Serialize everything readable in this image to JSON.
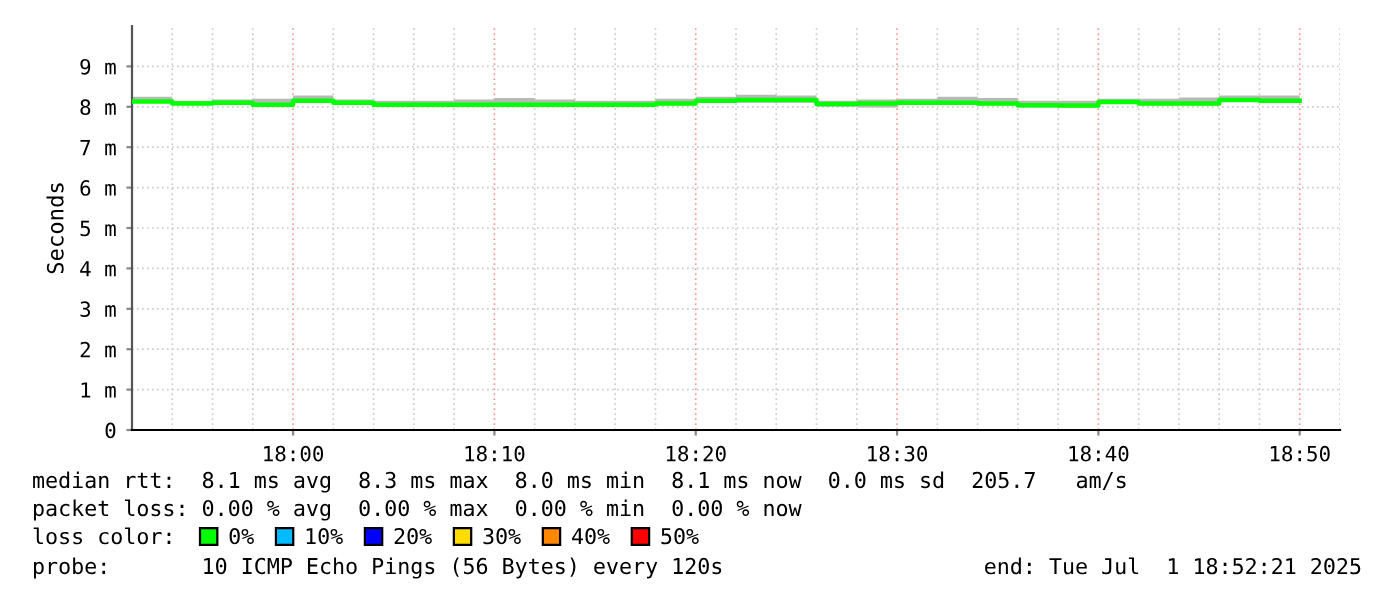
{
  "chart_data": {
    "type": "step",
    "ylabel": "Seconds",
    "x": [
      "2025-07-01T17:52",
      "2025-07-01T17:54",
      "2025-07-01T17:56",
      "2025-07-01T17:58",
      "2025-07-01T18:00",
      "2025-07-01T18:02",
      "2025-07-01T18:04",
      "2025-07-01T18:06",
      "2025-07-01T18:08",
      "2025-07-01T18:10",
      "2025-07-01T18:12",
      "2025-07-01T18:14",
      "2025-07-01T18:16",
      "2025-07-01T18:18",
      "2025-07-01T18:20",
      "2025-07-01T18:22",
      "2025-07-01T18:24",
      "2025-07-01T18:26",
      "2025-07-01T18:28",
      "2025-07-01T18:30",
      "2025-07-01T18:32",
      "2025-07-01T18:34",
      "2025-07-01T18:36",
      "2025-07-01T18:38",
      "2025-07-01T18:40",
      "2025-07-01T18:42",
      "2025-07-01T18:44",
      "2025-07-01T18:46",
      "2025-07-01T18:48",
      "2025-07-01T18:50"
    ],
    "series": [
      {
        "name": "0%",
        "color": "#00ff00",
        "values": [
          8.13,
          8.08,
          8.1,
          8.05,
          8.15,
          8.1,
          8.05,
          8.05,
          8.05,
          8.05,
          8.05,
          8.05,
          8.05,
          8.08,
          8.15,
          8.17,
          8.17,
          8.07,
          8.08,
          8.1,
          8.1,
          8.08,
          8.04,
          8.03,
          8.12,
          8.08,
          8.08,
          8.17,
          8.15,
          8.15
        ],
        "lower": [
          8.1,
          8.05,
          8.05,
          8.0,
          8.1,
          8.05,
          8.0,
          8.0,
          8.0,
          8.0,
          8.0,
          8.0,
          8.0,
          8.03,
          8.1,
          8.1,
          8.1,
          8.0,
          7.98,
          8.05,
          8.05,
          8.03,
          7.98,
          7.98,
          8.07,
          8.03,
          8.03,
          8.12,
          8.1,
          8.1
        ],
        "upper": [
          8.25,
          8.15,
          8.18,
          8.2,
          8.28,
          8.18,
          8.15,
          8.15,
          8.18,
          8.22,
          8.18,
          8.15,
          8.15,
          8.2,
          8.25,
          8.3,
          8.28,
          8.15,
          8.18,
          8.2,
          8.25,
          8.22,
          8.15,
          8.15,
          8.2,
          8.2,
          8.23,
          8.28,
          8.28,
          8.28
        ]
      },
      {
        "name": "10%",
        "color": "#00bbff",
        "values": [
          null,
          null,
          null,
          null,
          null,
          null,
          null,
          null,
          null,
          null,
          null,
          null,
          null,
          null,
          null,
          null,
          null,
          null,
          null,
          null,
          null,
          null,
          null,
          null,
          null,
          null,
          null,
          null,
          null,
          null
        ]
      },
      {
        "name": "20%",
        "color": "#0000ff",
        "values": [
          null,
          null,
          null,
          null,
          null,
          null,
          null,
          null,
          null,
          null,
          null,
          null,
          null,
          null,
          null,
          null,
          null,
          null,
          null,
          null,
          null,
          null,
          null,
          null,
          null,
          null,
          null,
          null,
          null,
          null
        ]
      },
      {
        "name": "30%",
        "color": "#ffdd00",
        "values": [
          null,
          null,
          null,
          null,
          null,
          null,
          null,
          null,
          null,
          null,
          null,
          null,
          null,
          null,
          null,
          null,
          null,
          null,
          null,
          null,
          null,
          null,
          null,
          null,
          null,
          null,
          null,
          null,
          null,
          null
        ]
      },
      {
        "name": "40%",
        "color": "#ff8800",
        "values": [
          null,
          null,
          null,
          null,
          null,
          null,
          null,
          null,
          null,
          null,
          null,
          null,
          null,
          null,
          null,
          null,
          null,
          null,
          null,
          null,
          null,
          null,
          null,
          null,
          null,
          null,
          null,
          null,
          null,
          null
        ]
      },
      {
        "name": "50%",
        "color": "#ff0000",
        "values": [
          null,
          null,
          null,
          null,
          null,
          null,
          null,
          null,
          null,
          null,
          null,
          null,
          null,
          null,
          null,
          null,
          null,
          null,
          null,
          null,
          null,
          null,
          null,
          null,
          null,
          null,
          null,
          null,
          null,
          null
        ]
      }
    ],
    "xlim": [
      "2025-07-01T17:52",
      "2025-07-01T18:52"
    ],
    "xticks": [
      {
        "value": "2025-07-01T18:00",
        "label": "18:00"
      },
      {
        "value": "2025-07-01T18:10",
        "label": "18:10"
      },
      {
        "value": "2025-07-01T18:20",
        "label": "18:20"
      },
      {
        "value": "2025-07-01T18:30",
        "label": "18:30"
      },
      {
        "value": "2025-07-01T18:40",
        "label": "18:40"
      },
      {
        "value": "2025-07-01T18:50",
        "label": "18:50"
      }
    ],
    "ylim": [
      0,
      10
    ],
    "yticks": [
      0,
      {
        "value": 1,
        "label": "1 m"
      },
      {
        "value": 2,
        "label": "2 m"
      },
      {
        "value": 3,
        "label": "3 m"
      },
      {
        "value": 4,
        "label": "4 m"
      },
      {
        "value": 5,
        "label": "5 m"
      },
      {
        "value": 6,
        "label": "6 m"
      },
      {
        "value": 7,
        "label": "7 m"
      },
      {
        "value": 8,
        "label": "8 m"
      },
      {
        "value": 9,
        "label": "9 m"
      }
    ],
    "grid": true,
    "legend": "bottom left",
    "annotations": [
      "median rtt:  8.1 ms avg  8.3 ms max  8.0 ms min  8.1 ms now  0.0 ms sd  205.7   am/s",
      "packet loss: 0.00 % avg  0.00 % max  0.00 % min  0.00 % now",
      "loss color:",
      "probe:       10 ICMP Echo Pings (56 Bytes) every 120s",
      "end: Tue Jul  1 18:52:21 2025"
    ]
  }
}
